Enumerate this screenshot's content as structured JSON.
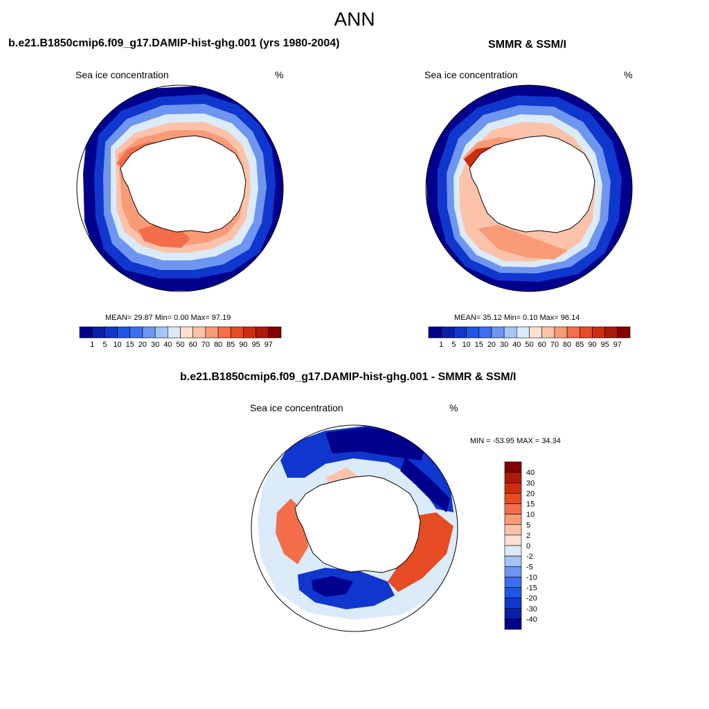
{
  "figure_title": "ANN",
  "panels": {
    "model": {
      "title": "b.e21.B1850cmip6.f09_g17.DAMIP-hist-ghg.001 (yrs 1980-2004)",
      "variable": "Sea ice concentration",
      "units": "%",
      "stats": "MEAN=  29.87  Min=   0.00  Max=  97.19"
    },
    "obs": {
      "title": "SMMR & SSM/I",
      "variable": "Sea ice concentration",
      "units": "%",
      "stats": "MEAN=  35.12  Min=   0.10  Max=  96.14"
    },
    "diff": {
      "title": "b.e21.B1850cmip6.f09_g17.DAMIP-hist-ghg.001 - SMMR & SSM/I",
      "variable": "Sea ice concentration",
      "units": "%",
      "minmax": "MIN = -53.95 MAX =  34.34"
    }
  },
  "colorbars": {
    "concentration": {
      "labels": [
        "1",
        "5",
        "10",
        "15",
        "20",
        "30",
        "40",
        "50",
        "60",
        "70",
        "80",
        "85",
        "90",
        "95",
        "97"
      ],
      "colors": [
        "#00008c",
        "#0a1ea6",
        "#0f37cd",
        "#1e55e6",
        "#3c6ef0",
        "#6e96f0",
        "#a5c3f5",
        "#dcebfa",
        "#fde1d2",
        "#fcc3aa",
        "#fa9b78",
        "#f56e4b",
        "#e64b23",
        "#cd2d0f",
        "#aa190a",
        "#820000"
      ]
    },
    "difference": {
      "labels": [
        "40",
        "30",
        "20",
        "15",
        "10",
        "5",
        "2",
        "0",
        "-2",
        "-5",
        "-10",
        "-15",
        "-20",
        "-30",
        "-40"
      ],
      "colors": [
        "#820000",
        "#aa190a",
        "#cd2d0f",
        "#e64b23",
        "#f56e4b",
        "#fa9b78",
        "#fcc3aa",
        "#fde1d2",
        "#dcebfa",
        "#a5c3f5",
        "#6e96f0",
        "#3c6ef0",
        "#1e55e6",
        "#0f37cd",
        "#0a1ea6",
        "#00008c"
      ]
    }
  }
}
